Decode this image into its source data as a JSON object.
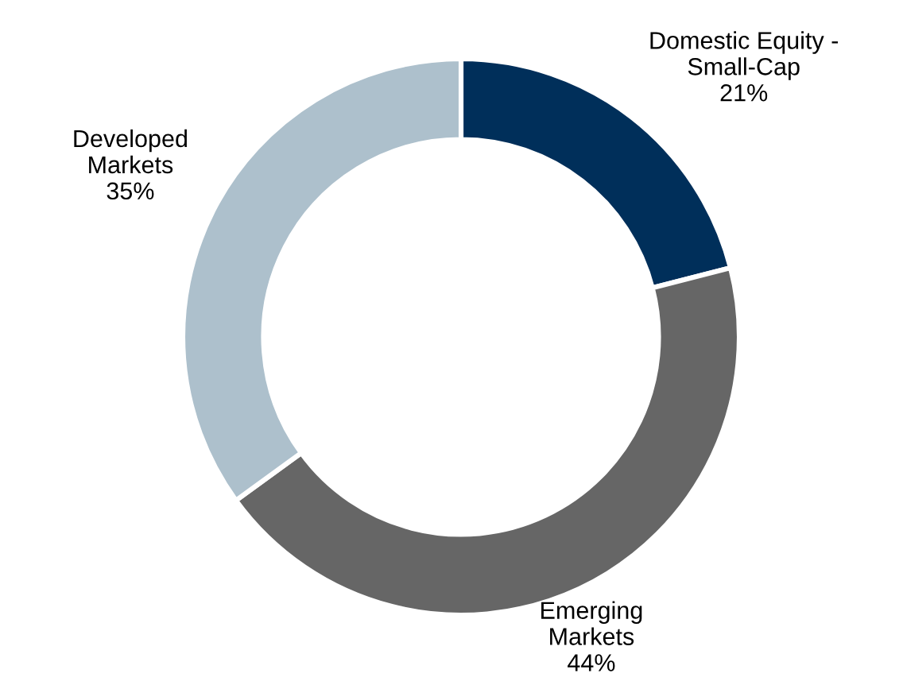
{
  "chart_data": {
    "type": "donut",
    "categories": [
      "Domestic Equity -\nSmall-Cap",
      "Emerging\nMarkets",
      "Developed\nMarkets"
    ],
    "values": [
      21,
      44,
      35
    ],
    "value_labels": [
      "21%",
      "44%",
      "35%"
    ],
    "colors": [
      "#002f5a",
      "#666666",
      "#adc0cc"
    ],
    "legend": false
  }
}
